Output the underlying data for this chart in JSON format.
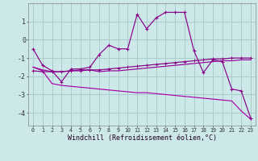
{
  "xlabel": "Windchill (Refroidissement éolien,°C)",
  "bg_color": "#cce8e8",
  "grid_color": "#aacccc",
  "x": [
    0,
    1,
    2,
    3,
    4,
    5,
    6,
    7,
    8,
    9,
    10,
    11,
    12,
    13,
    14,
    15,
    16,
    17,
    18,
    19,
    20,
    21,
    22,
    23
  ],
  "line1": [
    -0.5,
    -1.4,
    -1.7,
    -2.3,
    -1.6,
    -1.6,
    -1.5,
    -0.8,
    -0.3,
    -0.5,
    -0.5,
    1.4,
    0.6,
    1.2,
    1.5,
    1.5,
    1.5,
    -0.6,
    -1.8,
    -1.1,
    -1.2,
    -2.7,
    -2.8,
    -4.3
  ],
  "line2": [
    -1.7,
    -1.75,
    -1.75,
    -1.75,
    -1.7,
    -1.7,
    -1.65,
    -1.65,
    -1.6,
    -1.55,
    -1.5,
    -1.45,
    -1.4,
    -1.35,
    -1.3,
    -1.25,
    -1.2,
    -1.15,
    -1.1,
    -1.05,
    -1.05,
    -1.0,
    -1.0,
    -1.0
  ],
  "line3": [
    -1.5,
    -1.65,
    -1.75,
    -1.75,
    -1.7,
    -1.65,
    -1.65,
    -1.75,
    -1.7,
    -1.7,
    -1.65,
    -1.6,
    -1.55,
    -1.5,
    -1.45,
    -1.4,
    -1.35,
    -1.3,
    -1.25,
    -1.2,
    -1.15,
    -1.15,
    -1.1,
    -1.1
  ],
  "line4": [
    -1.5,
    -1.7,
    -2.4,
    -2.5,
    -2.55,
    -2.6,
    -2.65,
    -2.7,
    -2.75,
    -2.8,
    -2.85,
    -2.9,
    -2.9,
    -2.95,
    -3.0,
    -3.05,
    -3.1,
    -3.15,
    -3.2,
    -3.25,
    -3.3,
    -3.35,
    -3.9,
    -4.35
  ],
  "ylim": [
    -4.7,
    2.0
  ],
  "xlim": [
    -0.5,
    23.5
  ],
  "yticks": [
    -4,
    -3,
    -2,
    -1,
    0,
    1
  ],
  "xticks": [
    0,
    1,
    2,
    3,
    4,
    5,
    6,
    7,
    8,
    9,
    10,
    11,
    12,
    13,
    14,
    15,
    16,
    17,
    18,
    19,
    20,
    21,
    22,
    23
  ]
}
